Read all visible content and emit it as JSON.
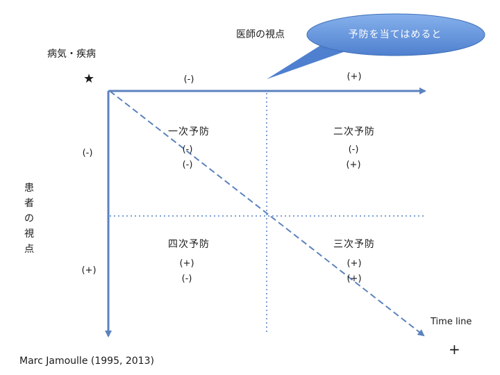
{
  "labels": {
    "disease": "病気・疾病",
    "star": "★",
    "doctor_view": "医師の視点",
    "patient_view": [
      "患",
      "者",
      "の",
      "視",
      "点"
    ],
    "top_left_sign": "(-)",
    "top_right_sign": "(+)",
    "left_upper_sign": "(-)",
    "left_lower_sign": "(+)",
    "time_line": "Time line",
    "plus": "+",
    "citation": "Marc Jamoulle (1995, 2013)"
  },
  "callout": {
    "text": "予防を当てはめると",
    "fill": "#5b8fd6"
  },
  "quadrants": {
    "q1": {
      "title": "一次予防",
      "signs": [
        "(-)",
        "(-)"
      ]
    },
    "q2": {
      "title": "二次予防",
      "signs": [
        "(-)",
        "(+)"
      ]
    },
    "q3": {
      "title": "三次予防",
      "signs": [
        "(+)",
        "(+)"
      ]
    },
    "q4": {
      "title": "四次予防",
      "signs": [
        "(+)",
        "(-)"
      ]
    }
  },
  "colors": {
    "axis": "#5b82bd",
    "dotted": "#7b9fd0"
  }
}
